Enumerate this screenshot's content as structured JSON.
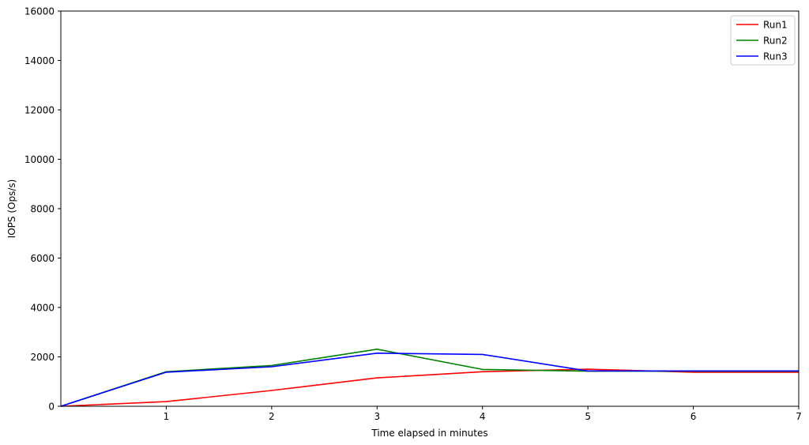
{
  "chart_data": {
    "type": "line",
    "title": "",
    "xlabel": "Time elapsed in minutes",
    "ylabel": "IOPS (Ops/s)",
    "xlim": [
      0,
      7
    ],
    "ylim": [
      0,
      16000
    ],
    "x": [
      0,
      1,
      2,
      3,
      4,
      5,
      6,
      7
    ],
    "xticks": [
      1,
      2,
      3,
      4,
      5,
      6,
      7
    ],
    "xtick_labels": [
      "1",
      "2",
      "3",
      "4",
      "5",
      "6",
      "7"
    ],
    "yticks": [
      0,
      2000,
      4000,
      6000,
      8000,
      10000,
      12000,
      14000,
      16000
    ],
    "ytick_labels": [
      "0",
      "2000",
      "4000",
      "6000",
      "8000",
      "10000",
      "12000",
      "14000",
      "16000"
    ],
    "grid": false,
    "legend_position": "top-right",
    "series": [
      {
        "name": "Run1",
        "color": "#ff0000",
        "values": [
          0,
          190,
          640,
          1150,
          1400,
          1500,
          1380,
          1380
        ]
      },
      {
        "name": "Run2",
        "color": "#008000",
        "values": [
          0,
          1400,
          1650,
          2310,
          1490,
          1420,
          1420,
          1420
        ]
      },
      {
        "name": "Run3",
        "color": "#0000ff",
        "values": [
          0,
          1380,
          1600,
          2150,
          2100,
          1430,
          1430,
          1430
        ]
      }
    ]
  }
}
